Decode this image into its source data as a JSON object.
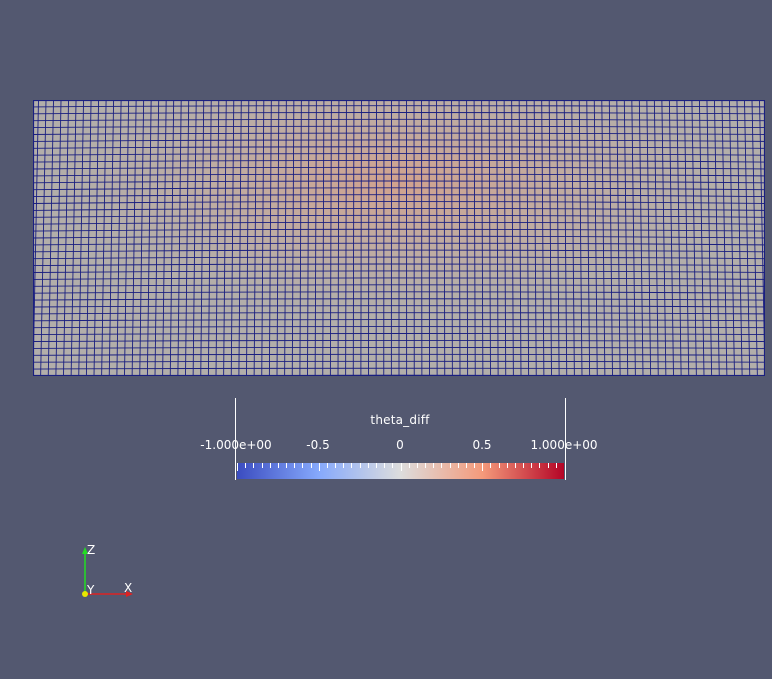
{
  "colors": {
    "background": "#535870",
    "mesh_fill": "#b2aeaa",
    "mesh_line": "#1a1f80",
    "colormap_low": "#3b4cc0",
    "colormap_mid": "#dddddd",
    "colormap_high": "#b40426"
  },
  "colorbar": {
    "title": "theta_diff",
    "tick_labels": [
      "-1.000e+00",
      "-0.5",
      "0",
      "0.5",
      "1.000e+00"
    ],
    "tick_values": [
      -1,
      -0.5,
      0,
      0.5,
      1
    ],
    "range": [
      -1,
      1
    ]
  },
  "axes": {
    "x_label": "X",
    "y_label": "Y",
    "z_label": "Z"
  }
}
